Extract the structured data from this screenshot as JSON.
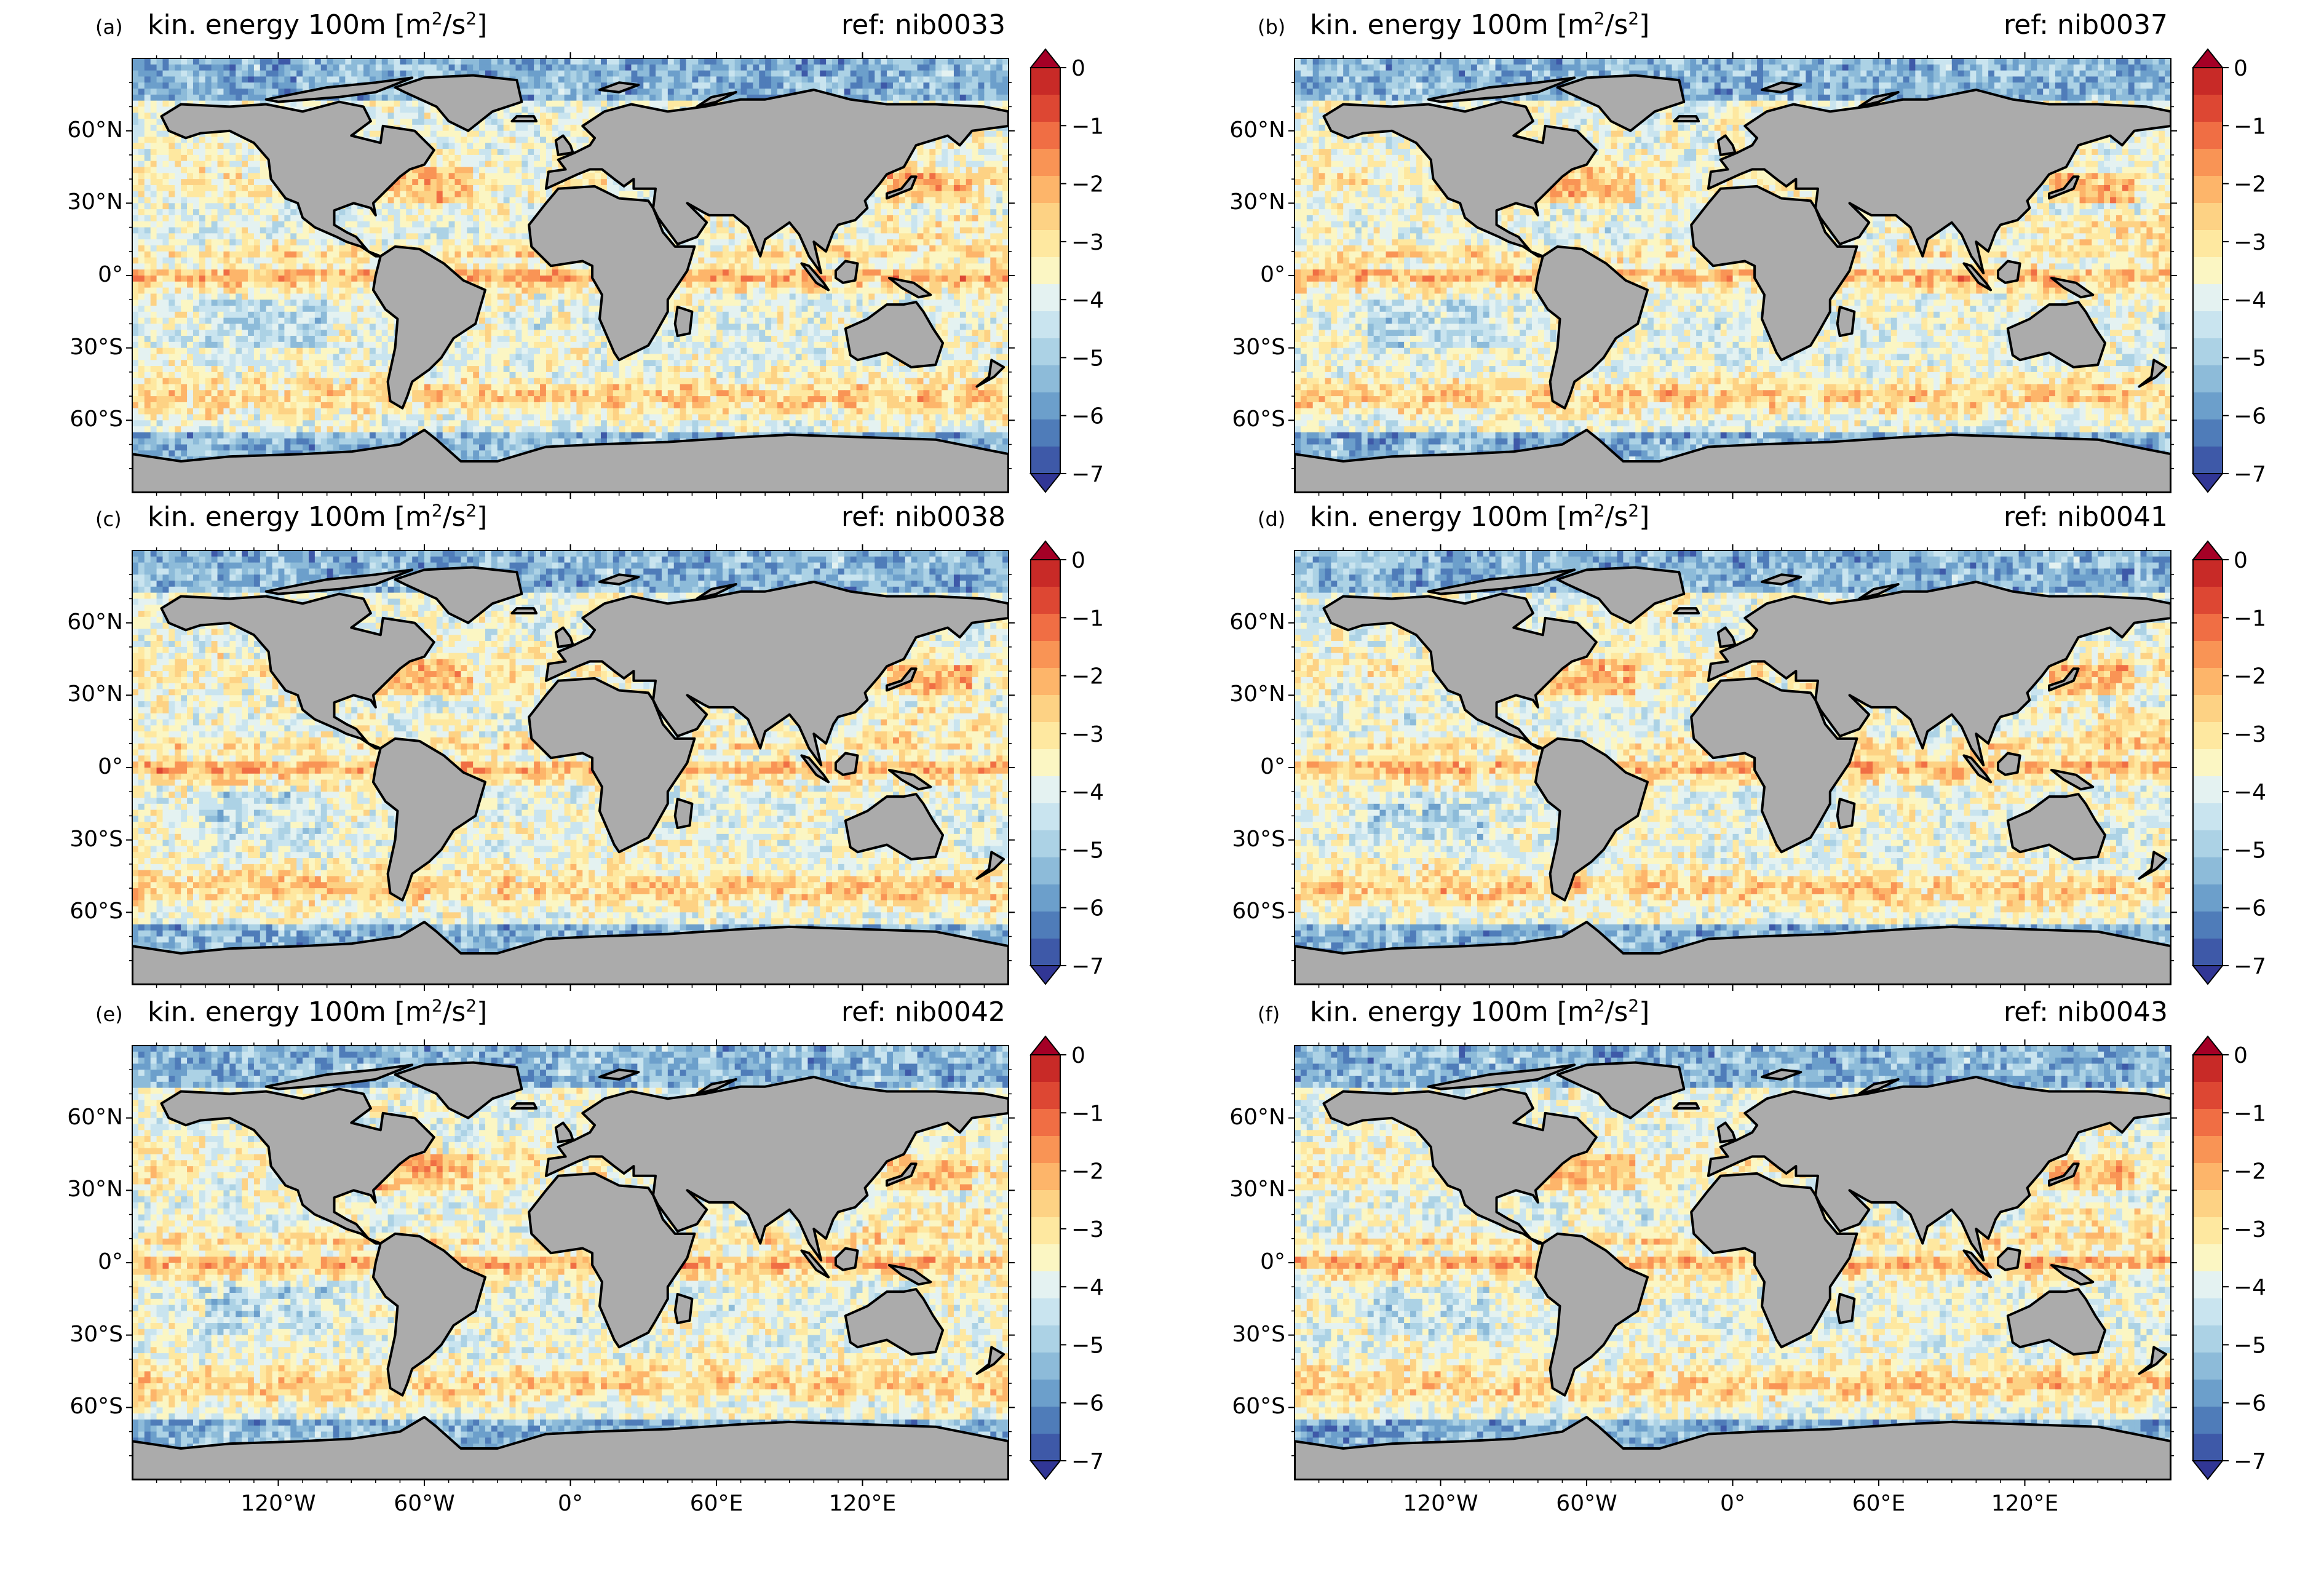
{
  "colors": {
    "land": "#ababab",
    "coast": "#000000",
    "scale": [
      "#313695",
      "#3e59a8",
      "#4f7cb9",
      "#6c9fcb",
      "#8dbbd9",
      "#acd2e5",
      "#c9e4ef",
      "#e4f2f1",
      "#fbf6c3",
      "#fee8a0",
      "#fdd284",
      "#fdb56a",
      "#f99455",
      "#f06e44",
      "#dd4733",
      "#c82a27",
      "#a50026"
    ]
  },
  "colorbar": {
    "ticks": [
      "0",
      "−1",
      "−2",
      "−3",
      "−4",
      "−5",
      "−6",
      "−7"
    ],
    "range": [
      -7,
      0
    ]
  },
  "axes": {
    "lat_labels": [
      "60°N",
      "30°N",
      "0°",
      "30°S",
      "60°S"
    ],
    "lon_labels": [
      "120°W",
      "60°W",
      "0°",
      "60°E",
      "120°E"
    ]
  },
  "panels": [
    {
      "letter": "(a)",
      "title_main": "kin. energy 100m [m",
      "title_sup1": "2",
      "title_mid": "/s",
      "title_sup2": "2",
      "title_end": "]",
      "ref": "ref: nib0033"
    },
    {
      "letter": "(b)",
      "title_main": "kin. energy 100m [m",
      "title_sup1": "2",
      "title_mid": "/s",
      "title_sup2": "2",
      "title_end": "]",
      "ref": "ref: nib0037"
    },
    {
      "letter": "(c)",
      "title_main": "kin. energy 100m [m",
      "title_sup1": "2",
      "title_mid": "/s",
      "title_sup2": "2",
      "title_end": "]",
      "ref": "ref: nib0038"
    },
    {
      "letter": "(d)",
      "title_main": "kin. energy 100m [m",
      "title_sup1": "2",
      "title_mid": "/s",
      "title_sup2": "2",
      "title_end": "]",
      "ref": "ref: nib0041"
    },
    {
      "letter": "(e)",
      "title_main": "kin. energy 100m [m",
      "title_sup1": "2",
      "title_mid": "/s",
      "title_sup2": "2",
      "title_end": "]",
      "ref": "ref: nib0042"
    },
    {
      "letter": "(f)",
      "title_main": "kin. energy 100m [m",
      "title_sup1": "2",
      "title_mid": "/s",
      "title_sup2": "2",
      "title_end": "]",
      "ref": "ref: nib0043"
    }
  ]
}
